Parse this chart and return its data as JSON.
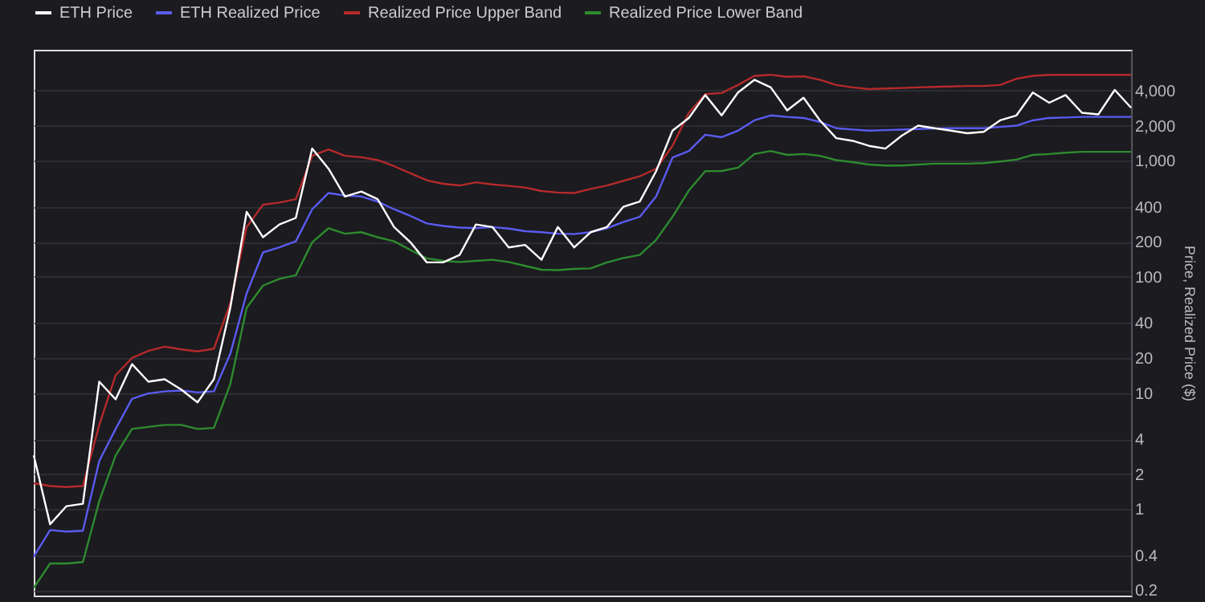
{
  "chart_data": {
    "type": "line",
    "ylabel": "Price, Realized Price ($)",
    "categories": [
      null,
      null,
      null,
      null,
      null,
      null,
      null,
      null,
      null,
      null,
      null,
      null,
      null,
      null,
      null,
      null,
      null,
      null,
      null,
      null,
      null,
      null,
      null,
      null,
      null,
      null,
      null,
      null,
      null,
      null,
      null,
      null,
      null,
      null,
      null,
      null,
      null,
      null,
      null,
      null,
      null,
      null,
      null,
      null,
      null,
      null,
      null,
      null,
      null,
      null,
      null,
      null,
      null,
      null,
      null,
      null,
      null,
      null,
      null,
      null,
      null,
      null,
      null,
      null,
      null,
      null,
      null,
      null
    ],
    "series": [
      {
        "name": "ETH Price",
        "color": "#ffffff",
        "values": [
          2.9,
          0.74,
          1.06,
          1.11,
          12.5,
          8.8,
          17.7,
          12.5,
          13.1,
          10.7,
          8.3,
          13.1,
          54,
          362,
          219,
          282,
          321,
          1270,
          851,
          491,
          542,
          466,
          268,
          198,
          133,
          133,
          154,
          282,
          268,
          179,
          188,
          140,
          268,
          179,
          242,
          268,
          401,
          444,
          811,
          1810,
          2330,
          3670,
          2450,
          3860,
          4960,
          4270,
          2710,
          3480,
          2220,
          1560,
          1480,
          1340,
          1270,
          1640,
          2000,
          1900,
          1810,
          1720,
          1770,
          2220,
          2450,
          3860,
          3150,
          3670,
          2580,
          2500,
          4060,
          2850
        ]
      },
      {
        "name": "ETH Realized Price",
        "color": "#5b5bf0",
        "values": [
          0.39,
          0.66,
          0.64,
          0.65,
          2.6,
          4.9,
          8.9,
          9.9,
          10.3,
          10.5,
          10.1,
          10.3,
          21.7,
          72,
          162,
          179,
          202,
          381,
          526,
          500,
          491,
          444,
          381,
          334,
          288,
          274,
          265,
          262,
          268,
          260,
          247,
          242,
          235,
          233,
          242,
          262,
          296,
          328,
          491,
          1060,
          1210,
          1670,
          1590,
          1810,
          2220,
          2450,
          2380,
          2330,
          2150,
          1900,
          1850,
          1810,
          1830,
          1850,
          1870,
          1890,
          1900,
          1900,
          1900,
          1950,
          2000,
          2220,
          2330,
          2350,
          2380,
          2380,
          2380,
          2380
        ]
      },
      {
        "name": "Realized Price Upper Band",
        "color": "#b52a2a",
        "values": [
          1.67,
          1.58,
          1.55,
          1.58,
          5.3,
          14.2,
          20,
          23,
          25,
          23.7,
          22.8,
          24,
          59,
          268,
          417,
          435,
          466,
          1100,
          1250,
          1100,
          1070,
          1010,
          896,
          778,
          676,
          631,
          611,
          650,
          624,
          605,
          587,
          547,
          531,
          526,
          570,
          611,
          670,
          733,
          851,
          1340,
          2580,
          3740,
          3820,
          4480,
          5370,
          5480,
          5260,
          5320,
          4960,
          4480,
          4270,
          4130,
          4180,
          4220,
          4270,
          4310,
          4350,
          4390,
          4390,
          4480,
          5060,
          5370,
          5480,
          5480,
          5480,
          5480,
          5480,
          5480
        ]
      },
      {
        "name": "Realized Price Lower Band",
        "color": "#2e8b2e",
        "values": [
          0.21,
          0.34,
          0.34,
          0.35,
          1.17,
          2.9,
          4.9,
          5.1,
          5.3,
          5.3,
          4.9,
          5.0,
          11.9,
          54,
          84,
          96,
          103,
          198,
          262,
          235,
          242,
          219,
          202,
          170,
          144,
          137,
          134,
          137,
          140,
          134,
          124,
          115,
          114,
          117,
          118,
          133,
          145,
          154,
          208,
          328,
          553,
          811,
          815,
          869,
          1140,
          1210,
          1120,
          1140,
          1100,
          1010,
          971,
          925,
          906,
          906,
          925,
          942,
          942,
          942,
          952,
          982,
          1020,
          1120,
          1140,
          1170,
          1190,
          1190,
          1190,
          1190
        ]
      }
    ],
    "log": "y",
    "ylim": [
      0.18,
      9000
    ],
    "yticks": [
      0.2,
      0.4,
      1,
      2,
      4,
      10,
      20,
      40,
      100,
      200,
      400,
      {
        "value": 1000,
        "label": "1,000"
      },
      {
        "value": 2000,
        "label": "2,000"
      },
      {
        "value": 4000,
        "label": "4,000"
      }
    ],
    "grid": "y",
    "legend": "top",
    "tick_labels": "y",
    "line_style": "solid"
  }
}
